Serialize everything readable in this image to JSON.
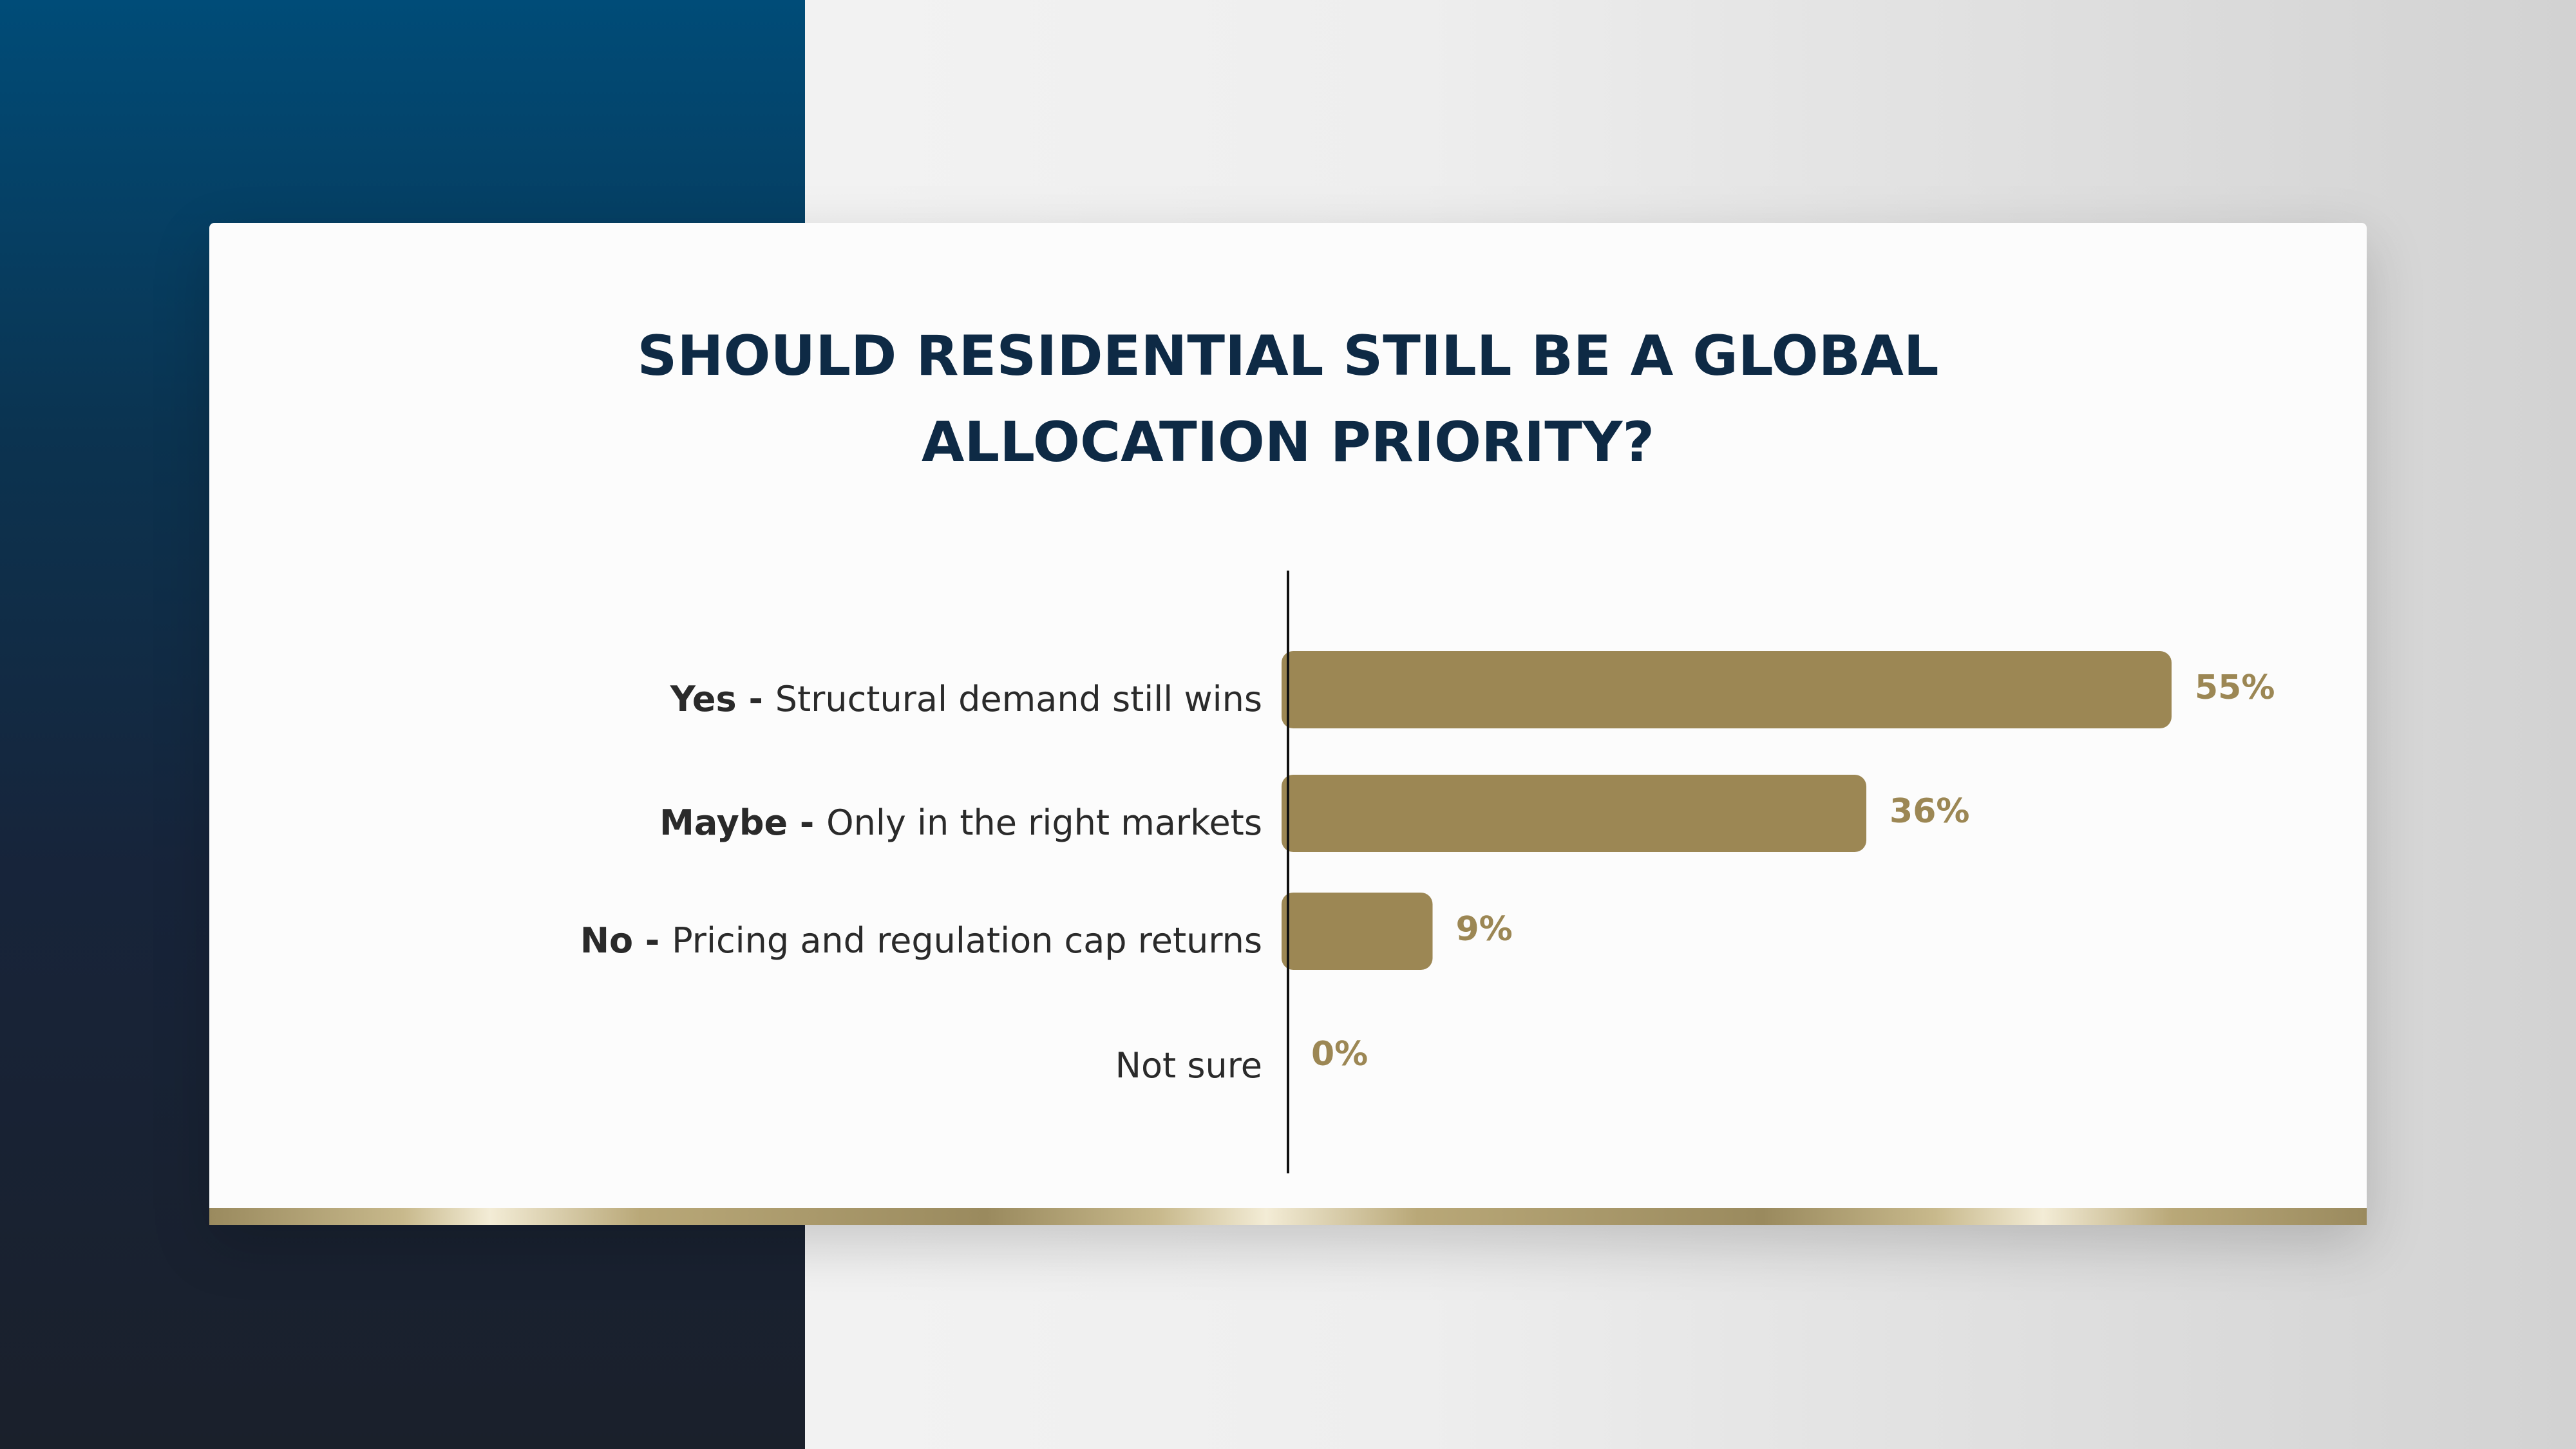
{
  "title_lines": [
    "SHOULD RESIDENTIAL STILL BE A GLOBAL",
    "ALLOCATION PRIORITY?"
  ],
  "colors": {
    "bar": "#9c8754",
    "value_text": "#9c8754",
    "title": "#0e2a45",
    "label": "#2a2a2a",
    "axis": "#111111"
  },
  "chart_data": {
    "type": "bar",
    "orientation": "horizontal",
    "title": "SHOULD RESIDENTIAL STILL BE A GLOBAL ALLOCATION PRIORITY?",
    "categories": [
      {
        "bold": "Yes - ",
        "text": "Structural demand still wins"
      },
      {
        "bold": "Maybe - ",
        "text": "Only in the right markets"
      },
      {
        "bold": "No - ",
        "text": "Pricing and regulation cap returns"
      },
      {
        "bold": "",
        "text": "Not sure"
      }
    ],
    "values": [
      55,
      36,
      9,
      0
    ],
    "value_labels": [
      "55%",
      "36%",
      "9%",
      "0%"
    ],
    "xlim": [
      0,
      55
    ],
    "grid": false,
    "legend": "none"
  }
}
